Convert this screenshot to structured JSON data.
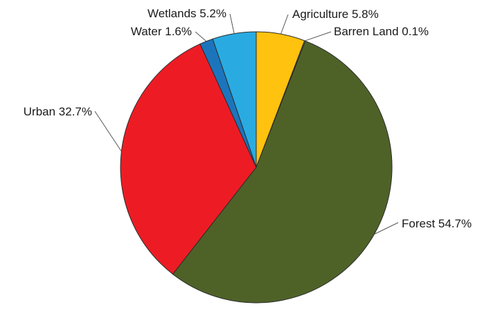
{
  "chart_data": {
    "type": "pie",
    "title": "",
    "slices": [
      {
        "label": "Agriculture",
        "value": 5.8,
        "display": "Agriculture 5.8%",
        "color": "#FFC20E"
      },
      {
        "label": "Barren Land",
        "value": 0.1,
        "display": "Barren Land 0.1%",
        "color": "#C8C8C8"
      },
      {
        "label": "Forest",
        "value": 54.7,
        "display": "Forest 54.7%",
        "color": "#4E6228"
      },
      {
        "label": "Urban",
        "value": 32.7,
        "display": "Urban 32.7%",
        "color": "#ED1C24"
      },
      {
        "label": "Water",
        "value": 1.6,
        "display": "Water 1.6%",
        "color": "#1C75BC"
      },
      {
        "label": "Wetlands",
        "value": 5.2,
        "display": "Wetlands 5.2%",
        "color": "#29ABE2"
      }
    ],
    "start_angle": "12 o'clock",
    "direction": "clockwise",
    "legend": "none"
  }
}
